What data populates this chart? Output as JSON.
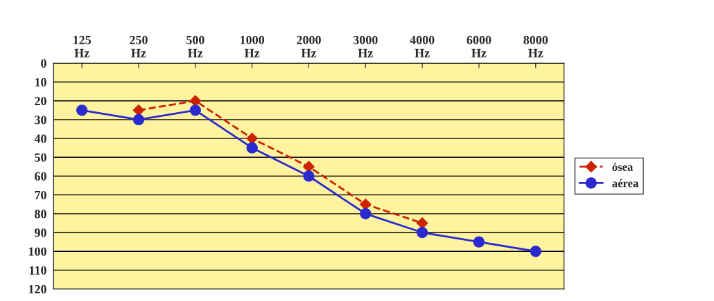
{
  "chart_data": {
    "type": "line",
    "categories": [
      "125\nHz",
      "250\nHz",
      "500\nHz",
      "1000\nHz",
      "2000\nHz",
      "3000\nHz",
      "4000\nHz",
      "6000\nHz",
      "8000\nHz"
    ],
    "series": [
      {
        "name": "ósea",
        "color": "#cc2200",
        "marker": "diamond",
        "line_style": "dashed",
        "values": [
          null,
          25,
          20,
          40,
          55,
          75,
          85,
          null,
          null
        ]
      },
      {
        "name": "aérea",
        "color": "#2a2ad0",
        "marker": "circle",
        "line_style": "solid",
        "values": [
          25,
          30,
          25,
          45,
          60,
          80,
          90,
          95,
          100
        ]
      }
    ],
    "ylim": [
      120,
      0
    ],
    "yticks": [
      0,
      10,
      20,
      30,
      40,
      50,
      60,
      70,
      80,
      90,
      100,
      110,
      120
    ],
    "grid": "y",
    "legend": "right"
  }
}
